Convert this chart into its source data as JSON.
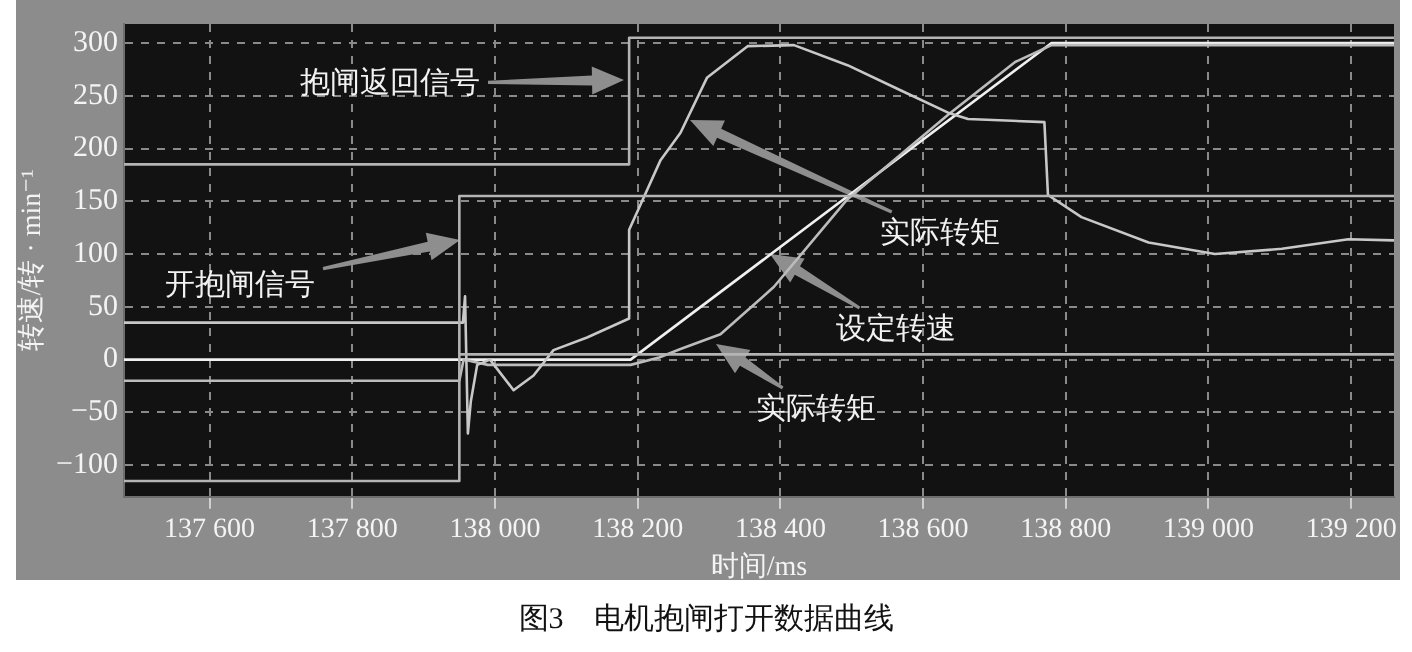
{
  "chart_data": {
    "type": "line",
    "xlabel": "时间/ms",
    "ylabel": "转速/转 · min⁻¹",
    "xlim": [
      137480,
      139260
    ],
    "ylim": [
      -130,
      318
    ],
    "xticks": [
      {
        "value": 137600,
        "label": "137 600"
      },
      {
        "value": 137800,
        "label": "137 800"
      },
      {
        "value": 138000,
        "label": "138 000"
      },
      {
        "value": 138200,
        "label": "138 200"
      },
      {
        "value": 138400,
        "label": "138 400"
      },
      {
        "value": 138600,
        "label": "138 600"
      },
      {
        "value": 138800,
        "label": "138 800"
      },
      {
        "value": 139000,
        "label": "139 000"
      },
      {
        "value": 139200,
        "label": "139 200"
      }
    ],
    "yticks": [
      {
        "value": -100,
        "label": "−100"
      },
      {
        "value": -50,
        "label": "−50"
      },
      0,
      50,
      100,
      150,
      200,
      250,
      300
    ],
    "grid": true,
    "legend": false,
    "marker": "none",
    "line_style": "solid",
    "series": [
      {
        "color": "#b4b4b4",
        "x": [
          137480,
          138188,
          138188,
          139260
        ],
        "values": [
          185,
          185,
          305,
          305
        ]
      },
      {
        "color": "#b4b4b4",
        "x": [
          137480,
          137950,
          137950,
          139260
        ],
        "values": [
          -115,
          -115,
          155,
          155
        ]
      },
      {
        "color": "#b4b4b4",
        "x": [
          137950,
          139260
        ],
        "values": [
          5,
          5
        ]
      },
      {
        "color": "#c8c8c8",
        "x": [
          137480,
          137955,
          137958,
          137962,
          137966,
          137975,
          137993,
          138026,
          138054,
          138082,
          138129,
          138188,
          138188,
          138204,
          138232,
          138260,
          138297,
          138354,
          138419,
          138494,
          138569,
          138635,
          138663,
          138770,
          138775,
          138822,
          138916,
          139009,
          139103,
          139196,
          139260
        ],
        "values": [
          35,
          35,
          60,
          -70,
          -40,
          -5,
          0,
          -29,
          -15,
          9,
          21,
          39,
          123,
          147,
          189,
          215,
          267,
          297,
          298,
          279,
          255,
          234,
          228,
          225,
          156,
          135,
          111,
          100,
          105,
          114,
          113
        ]
      },
      {
        "color": "#bcbcbc",
        "x": [
          137480,
          137950,
          137956,
          137990,
          138100,
          138190,
          138230,
          138260,
          138316,
          138391,
          138494,
          138635,
          138729,
          138780,
          139260
        ],
        "values": [
          -20,
          -20,
          0,
          -5,
          -5,
          -5,
          2,
          10,
          24,
          69,
          152,
          232,
          282,
          298,
          298
        ]
      },
      {
        "color": "#f0f0f0",
        "x": [
          137480,
          138190,
          138780,
          139260
        ],
        "values": [
          0,
          0,
          300,
          300
        ]
      }
    ],
    "annotations": [
      "抱闸返回信号",
      "开抱闸信号",
      "实际转矩",
      "设定转速",
      "实际转矩",
      "图3　电机抱闸打开数据曲线"
    ]
  }
}
